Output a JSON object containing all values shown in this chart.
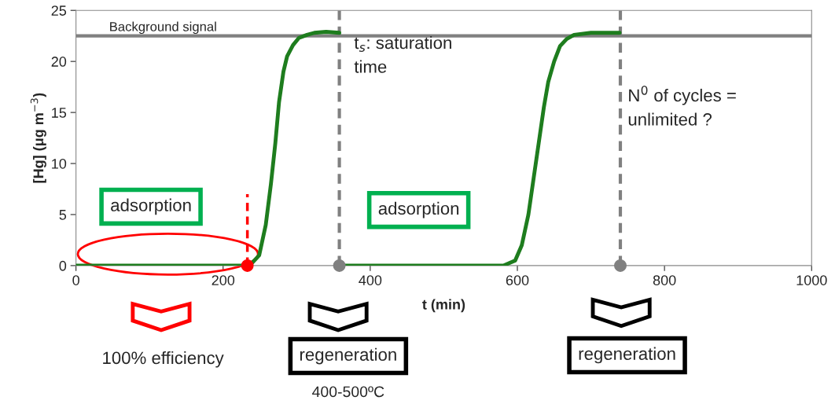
{
  "chart_data": {
    "type": "line",
    "xlabel": "t (min)",
    "ylabel": "[Hg] (μg m$^{−3}$)",
    "xlim": [
      0,
      1000
    ],
    "ylim": [
      0,
      25
    ],
    "xticks": [
      0,
      200,
      400,
      600,
      800,
      1000
    ],
    "yticks": [
      0,
      5,
      10,
      15,
      20,
      25
    ],
    "grid": false,
    "series": [
      {
        "color": "#1e7d1e",
        "x": [
          0,
          100,
          200,
          236,
          249,
          258,
          265,
          271,
          276,
          282,
          287,
          295,
          303,
          314,
          324,
          340,
          358
        ],
        "values": [
          0,
          0,
          0,
          0,
          1,
          4,
          8,
          12,
          16,
          19,
          20.5,
          21.6,
          22.3,
          22.6,
          22.8,
          22.9,
          22.8
        ]
      },
      {
        "color": "#1e7d1e",
        "x": [
          358,
          400,
          500,
          581,
          597,
          606,
          615,
          622,
          629,
          636,
          642,
          650,
          658,
          667,
          677,
          700,
          739
        ],
        "values": [
          0,
          0,
          0,
          0,
          0.5,
          2,
          5,
          8.5,
          12,
          15.5,
          18,
          20,
          21.5,
          22.2,
          22.6,
          22.8,
          22.8
        ]
      },
      {
        "color": "#ff0000",
        "line_style": "dashed",
        "marker": "none",
        "x": [
          233,
          233
        ],
        "values": [
          0,
          7
        ]
      },
      {
        "type": "scatter",
        "color": "#ff0000",
        "marker": "circle",
        "x": [
          233
        ],
        "values": [
          0
        ]
      },
      {
        "type": "scatter",
        "color": "#808080",
        "marker": "circle",
        "x": [
          358,
          740
        ],
        "values": [
          0,
          0
        ]
      }
    ],
    "ref_lines": [
      {
        "axis": "y",
        "value": 22.5,
        "label": "Background signal",
        "color": "#808080",
        "line_style": "solid"
      },
      {
        "axis": "x",
        "value": 358,
        "color": "#808080",
        "line_style": "dashed"
      },
      {
        "axis": "x",
        "value": 740,
        "color": "#808080",
        "line_style": "dashed"
      }
    ],
    "annotations": [
      "adsorption",
      "adsorption",
      "t$_{s}$: saturation\ntime",
      "N$^{0}$ of cycles =\nunlimited ?",
      "100% efficiency",
      "regeneration",
      "400-500ºC",
      "regeneration"
    ]
  }
}
